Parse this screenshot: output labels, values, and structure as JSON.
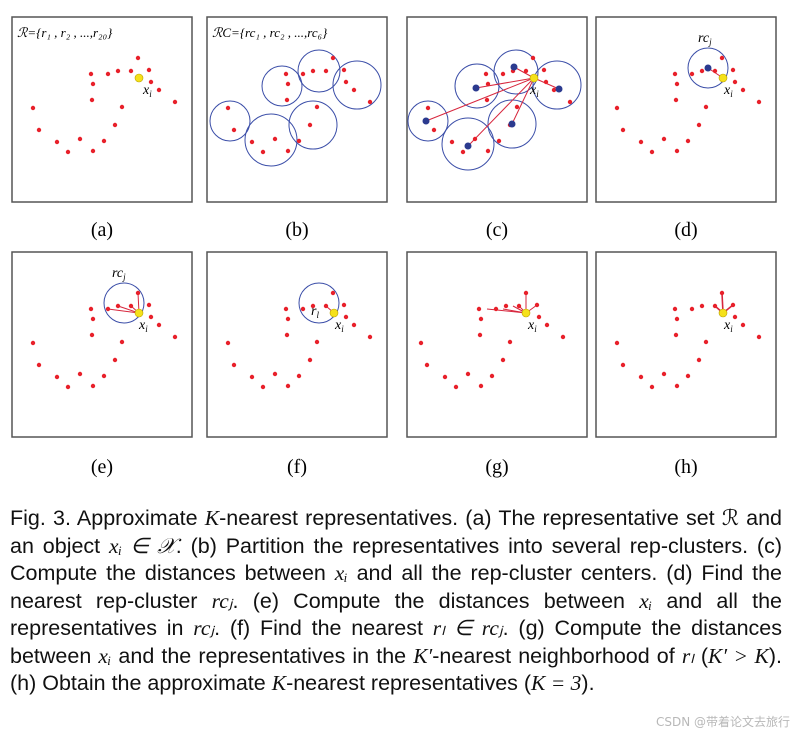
{
  "panels": [
    {
      "id": "a",
      "label": "(a)",
      "set_text": "ℛ={r₁ , r₂ , ...,r₂₀}",
      "xi": "x",
      "xi_sub": "i"
    },
    {
      "id": "b",
      "label": "(b)",
      "set_text": "ℛC={rc₁ , rc₂ , ...,rc₆}"
    },
    {
      "id": "c",
      "label": "(c)",
      "xi": "x",
      "xi_sub": "i"
    },
    {
      "id": "d",
      "label": "(d)",
      "rc": "rc",
      "rc_sub": "j",
      "xi": "x",
      "xi_sub": "i"
    },
    {
      "id": "e",
      "label": "(e)",
      "rc": "rc",
      "rc_sub": "j",
      "xi": "x",
      "xi_sub": "i"
    },
    {
      "id": "f",
      "label": "(f)",
      "rl": "r",
      "rl_sub": "l",
      "xi": "x",
      "xi_sub": "i"
    },
    {
      "id": "g",
      "label": "(g)",
      "xi": "x",
      "xi_sub": "i"
    },
    {
      "id": "h",
      "label": "(h)",
      "xi": "x",
      "xi_sub": "i"
    }
  ],
  "caption": {
    "p1": "Fig. 3. Approximate ",
    "p2": "K",
    "p3": "-nearest representatives. (a) The representative set ",
    "p4": "ℛ",
    "p5": " and an object ",
    "p6": "xᵢ ∈ 𝒳",
    "p7": ". (b) Partition the representatives into several rep-clusters. (c) Compute the distances between ",
    "p8": "xᵢ",
    "p9": " and all the rep-cluster centers. (d) Find the nearest rep-cluster ",
    "p10": "rcⱼ",
    "p11": ". (e) Compute the distances between ",
    "p12": "xᵢ",
    "p13": " and all the representatives in ",
    "p14": "rcⱼ",
    "p15": ". (f) Find the nearest ",
    "p16": "rₗ ∈ rcⱼ",
    "p17": ". (g) Compute the distances between ",
    "p18": "xᵢ",
    "p19": " and the representatives in the ",
    "p20": "K′",
    "p21": "-nearest neighborhood of ",
    "p22": "rₗ",
    "p23": " (",
    "p24": "K′ > K",
    "p25": "). (h) Obtain the approximate ",
    "p26": "K",
    "p27": "-nearest representatives (",
    "p28": "K = 3",
    "p29": ")."
  },
  "watermark": "CSDN @带着论文去旅行",
  "colors": {
    "point": "#e8202a",
    "center": "#2b3a8f",
    "circle": "#3b4ea8",
    "object": "#f5e11a",
    "line": "#d7263d",
    "frame": "#555555"
  }
}
